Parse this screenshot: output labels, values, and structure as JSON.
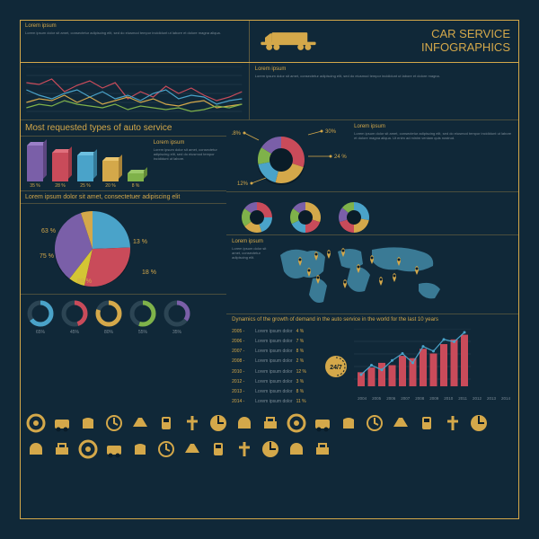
{
  "page": {
    "background_color": "#102838",
    "border_color": "#d4a84a"
  },
  "header": {
    "left_title": "Lorem ipsum",
    "left_body": "Lorem ipsum dolor sit amet, consectetur adipiscing elit, sed do eiusmod tempor incididunt ut labore et dolore magna aliqua.",
    "truck_color": "#d4a84a",
    "main_title_line1": "CAR SERVICE",
    "main_title_line2": "INFOGRAPHICS",
    "main_title_color": "#d4a84a",
    "main_title_fontsize": 13
  },
  "line_chart_1": {
    "type": "line",
    "series": [
      {
        "color": "#c94b5a",
        "points": [
          38,
          36,
          42,
          28,
          35,
          40,
          32,
          38,
          20,
          28,
          22,
          34,
          26,
          32,
          24,
          18,
          22,
          28
        ]
      },
      {
        "color": "#4aa3c9",
        "points": [
          30,
          24,
          20,
          26,
          30,
          22,
          28,
          20,
          24,
          18,
          26,
          30,
          20,
          24,
          22,
          14,
          18,
          20
        ]
      },
      {
        "color": "#d4a84a",
        "points": [
          16,
          20,
          18,
          24,
          16,
          22,
          14,
          18,
          22,
          16,
          20,
          14,
          12,
          16,
          18,
          10,
          12,
          14
        ]
      },
      {
        "color": "#7fb24a",
        "points": [
          10,
          14,
          12,
          18,
          14,
          12,
          10,
          14,
          8,
          12,
          10,
          8,
          10,
          6,
          8,
          12,
          10,
          14
        ]
      }
    ],
    "grid_color": "#2c4554",
    "background": "transparent",
    "height": 56
  },
  "line_chart_2_panel": {
    "title": "Lorem ipsum",
    "body": "Lorem ipsum dolor sit amet, consectetur adipiscing elit, sed do eiusmod tempor incididunt ut labore et dolore magna."
  },
  "most_requested": {
    "title": "Most requested types of auto service",
    "title_color": "#d4a84a",
    "title_fontsize": 10,
    "bars": [
      {
        "value": 35,
        "label": "35 %",
        "front": "#7a5fa8",
        "side": "#5c4680",
        "top": "#9a7fc8"
      },
      {
        "value": 28,
        "label": "28 %",
        "front": "#c94b5a",
        "side": "#a03a47",
        "top": "#e0707d"
      },
      {
        "value": 25,
        "label": "25 %",
        "front": "#4aa3c9",
        "side": "#357a99",
        "top": "#6dc0e0"
      },
      {
        "value": 20,
        "label": "20 %",
        "front": "#d4a84a",
        "side": "#a88238",
        "top": "#eac56e"
      },
      {
        "value": 8,
        "label": "8 %",
        "front": "#7fb24a",
        "side": "#628a38",
        "top": "#9cc96a"
      }
    ],
    "right_title": "Lorem ipsum",
    "right_body": "Lorem ipsum dolor sit amet, consectetur adipiscing elit, sed do eiusmod tempor incididunt ut labore."
  },
  "donut_main": {
    "type": "donut",
    "slices": [
      {
        "color": "#c94b5a",
        "pct": 30,
        "label": "30%"
      },
      {
        "color": "#d4a84a",
        "pct": 24,
        "label": "24 %"
      },
      {
        "color": "#4aa3c9",
        "pct": 18,
        "label": "18%"
      },
      {
        "color": "#7fb24a",
        "pct": 12,
        "label": "12%"
      },
      {
        "color": "#7a5fa8",
        "pct": 16,
        "label": ""
      }
    ],
    "leader_color": "#d4a84a",
    "leader_percents": [
      "30%",
      "24 %",
      "18%",
      "12%"
    ],
    "right_title": "Lorem ipsum",
    "right_body": "Lorem ipsum dolor sit amet, consectetur adipiscing elit, sed do eiusmod tempor incididunt ut labore et dolore magna aliqua. Ut enim ad minim veniam quis nostrud."
  },
  "donut_small_strip": {
    "donuts": [
      {
        "colors": [
          "#c94b5a",
          "#4aa3c9",
          "#d4a84a",
          "#7fb24a",
          "#7a5fa8"
        ],
        "pcts": [
          25,
          20,
          20,
          20,
          15
        ]
      },
      {
        "colors": [
          "#d4a84a",
          "#c94b5a",
          "#4aa3c9",
          "#7fb24a",
          "#7a5fa8"
        ],
        "pcts": [
          30,
          20,
          18,
          17,
          15
        ]
      },
      {
        "colors": [
          "#4aa3c9",
          "#d4a84a",
          "#c94b5a",
          "#7a5fa8",
          "#7fb24a"
        ],
        "pcts": [
          28,
          22,
          20,
          16,
          14
        ]
      }
    ]
  },
  "pie_section": {
    "title": "Lorem ipsum dolor sit amet, consectetuer adipiscing elit",
    "pie": {
      "slices": [
        {
          "color": "#4aa3c9",
          "pct": 63,
          "label": "63 %"
        },
        {
          "color": "#c94b5a",
          "pct": 75,
          "label": "75 %"
        },
        {
          "color": "#d4c534",
          "pct": 18,
          "label": "18 %"
        },
        {
          "color": "#7a5fa8",
          "pct": 89,
          "label": "89 %"
        },
        {
          "color": "#d4a84a",
          "pct": 13,
          "label": "13 %"
        }
      ]
    },
    "small_donuts": [
      {
        "fg": "#4aa3c9",
        "bg": "#2c4554",
        "pct": 65,
        "label": "65%"
      },
      {
        "fg": "#c94b5a",
        "bg": "#2c4554",
        "pct": 45,
        "label": "45%"
      },
      {
        "fg": "#d4a84a",
        "bg": "#2c4554",
        "pct": 80,
        "label": "80%"
      },
      {
        "fg": "#7fb24a",
        "bg": "#2c4554",
        "pct": 55,
        "label": "55%"
      },
      {
        "fg": "#7a5fa8",
        "bg": "#2c4554",
        "pct": 35,
        "label": "35%"
      }
    ]
  },
  "map_panel": {
    "title": "Lorem ipsum",
    "body": "Lorem ipsum dolor sit amet, consectetur adipiscing elit.",
    "land_color": "#3a7a95",
    "sea_color": "transparent",
    "marker_color": "#d4a84a",
    "markers": [
      [
        30,
        30
      ],
      [
        48,
        24
      ],
      [
        62,
        22
      ],
      [
        78,
        20
      ],
      [
        110,
        28
      ],
      [
        140,
        30
      ],
      [
        160,
        40
      ],
      [
        50,
        50
      ],
      [
        80,
        55
      ],
      [
        120,
        52
      ],
      [
        40,
        42
      ],
      [
        95,
        38
      ],
      [
        135,
        48
      ]
    ]
  },
  "dynamics": {
    "title": "Dynamics of the growth of demand in the auto service in the world for the last 10 years",
    "rows": [
      {
        "year": "2005",
        "text": "Lorem ipsum dolor",
        "val": "4 %"
      },
      {
        "year": "2006",
        "text": "Lorem ipsum dolor",
        "val": "7 %"
      },
      {
        "year": "2007",
        "text": "Lorem ipsum dolor",
        "val": "8 %"
      },
      {
        "year": "2008",
        "text": "Lorem ipsum dolor",
        "val": "2 %"
      },
      {
        "year": "2010",
        "text": "Lorem ipsum dolor",
        "val": "12 %"
      },
      {
        "year": "2012",
        "text": "Lorem ipsum dolor",
        "val": "3 %"
      },
      {
        "year": "2013",
        "text": "Lorem ipsum dolor",
        "val": "8 %"
      },
      {
        "year": "2014",
        "text": "Lorem ipsum dolor",
        "val": "11 %"
      }
    ],
    "badge_text": "24/7",
    "badge_bg": "#d4a84a",
    "bar_chart": {
      "bar_color": "#c94b5a",
      "line_color": "#4aa3c9",
      "values": [
        12,
        16,
        20,
        18,
        26,
        24,
        32,
        28,
        36,
        40,
        44
      ],
      "line_points": [
        10,
        18,
        14,
        22,
        28,
        20,
        34,
        30,
        40,
        38,
        46
      ],
      "years": [
        "2004",
        "2005",
        "2006",
        "2007",
        "2008",
        "2009",
        "2010",
        "2011",
        "2012",
        "2013",
        "2014"
      ]
    }
  },
  "footer_icons": {
    "color": "#d4a84a",
    "dark": "#0a1c28",
    "count": 30
  }
}
